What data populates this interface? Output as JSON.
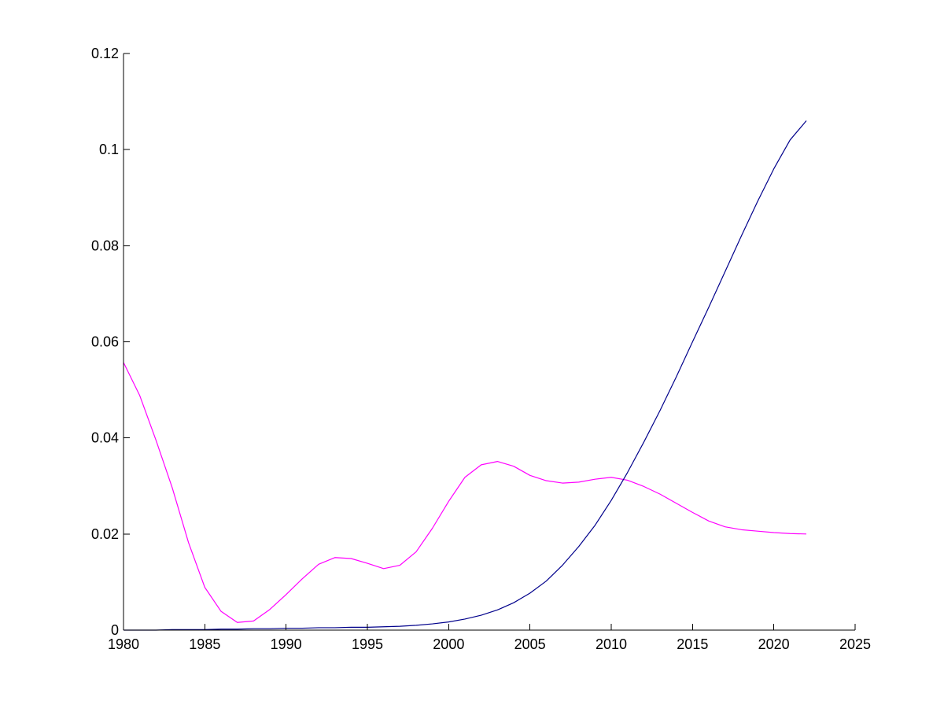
{
  "chart_data": {
    "type": "line",
    "title": "",
    "xlabel": "",
    "ylabel": "",
    "xlim": [
      1980,
      2025
    ],
    "ylim": [
      0,
      0.12
    ],
    "grid": false,
    "x_ticks": [
      1980,
      1985,
      1990,
      1995,
      2000,
      2005,
      2010,
      2015,
      2020,
      2025
    ],
    "y_ticks": [
      0,
      0.02,
      0.04,
      0.06,
      0.08,
      0.1,
      0.12
    ],
    "x_tick_labels": [
      "1980",
      "1985",
      "1990",
      "1995",
      "2000",
      "2005",
      "2010",
      "2015",
      "2020",
      "2025"
    ],
    "y_tick_labels": [
      "0",
      "0.02",
      "0.04",
      "0.06",
      "0.08",
      "0.1",
      "0.12"
    ],
    "x": [
      1980,
      1981,
      1982,
      1983,
      1984,
      1985,
      1986,
      1987,
      1988,
      1989,
      1990,
      1991,
      1992,
      1993,
      1994,
      1995,
      1996,
      1997,
      1998,
      1999,
      2000,
      2001,
      2002,
      2003,
      2004,
      2005,
      2006,
      2007,
      2008,
      2009,
      2010,
      2011,
      2012,
      2013,
      2014,
      2015,
      2016,
      2017,
      2018,
      2019,
      2020,
      2021,
      2022
    ],
    "series": [
      {
        "color": "#ff00ff",
        "values": [
          0.0557,
          0.0488,
          0.0395,
          0.0296,
          0.0182,
          0.0089,
          0.0039,
          0.0016,
          0.0019,
          0.0043,
          0.0074,
          0.0107,
          0.0137,
          0.0151,
          0.0149,
          0.0139,
          0.0128,
          0.0135,
          0.0163,
          0.0212,
          0.0268,
          0.0318,
          0.0344,
          0.0351,
          0.0341,
          0.0322,
          0.0311,
          0.0306,
          0.0308,
          0.0314,
          0.0318,
          0.0312,
          0.0299,
          0.0283,
          0.0264,
          0.0245,
          0.0227,
          0.0215,
          0.0209,
          0.0206,
          0.0203,
          0.0201,
          0.02
        ]
      },
      {
        "color": "#00008b",
        "values": [
          0.0,
          0.0,
          0.0,
          0.0001,
          0.0001,
          0.0001,
          0.0002,
          0.0002,
          0.0003,
          0.0003,
          0.0004,
          0.0004,
          0.0005,
          0.0005,
          0.0006,
          0.0006,
          0.0007,
          0.0008,
          0.001,
          0.0013,
          0.0017,
          0.0023,
          0.0031,
          0.0042,
          0.0057,
          0.0077,
          0.0102,
          0.0135,
          0.0174,
          0.0218,
          0.027,
          0.0328,
          0.0391,
          0.0457,
          0.0527,
          0.06,
          0.0672,
          0.0746,
          0.082,
          0.0892,
          0.096,
          0.102,
          0.106
        ]
      }
    ]
  }
}
